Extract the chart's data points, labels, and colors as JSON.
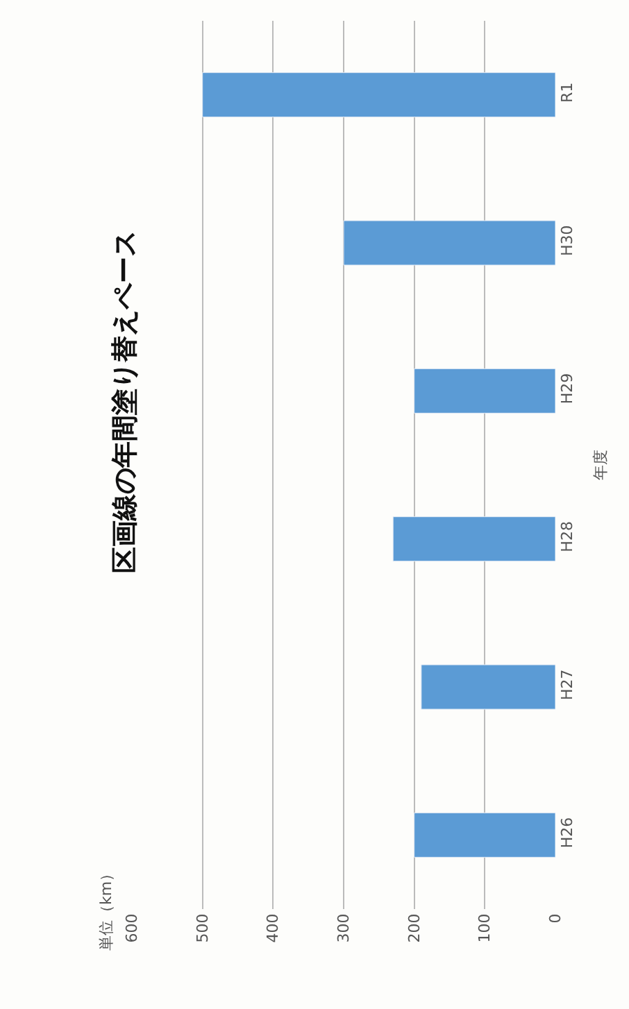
{
  "chart_data": {
    "type": "bar",
    "orientation": "horizontal",
    "title": "区画線の年間塗り替えペース",
    "ylabel": "年度",
    "annotations": [
      "単位（km）"
    ],
    "categories": [
      "R1",
      "H30",
      "H29",
      "H28",
      "H27",
      "H26"
    ],
    "values": [
      500,
      300,
      200,
      230,
      190,
      200
    ],
    "color": "#5b9bd5",
    "xlim": [
      600,
      0
    ],
    "xticks": [
      0,
      100,
      200,
      300,
      400,
      500,
      600
    ],
    "grid": "x"
  }
}
